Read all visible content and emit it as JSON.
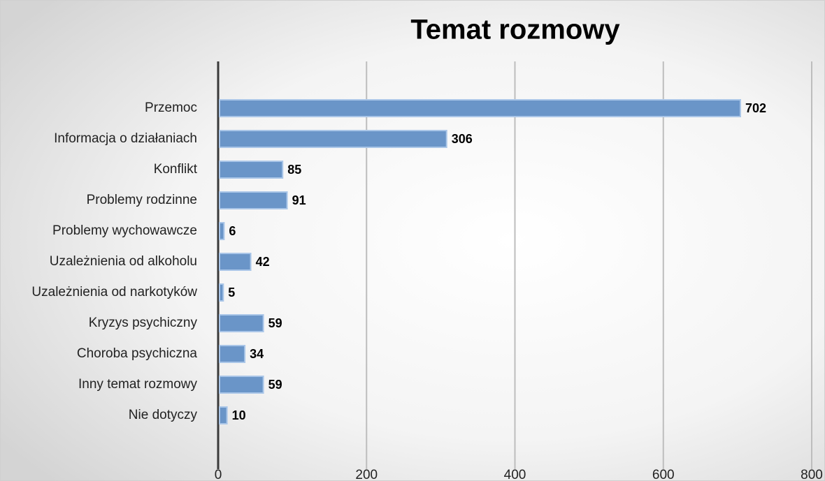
{
  "chart_data": {
    "type": "bar",
    "orientation": "horizontal",
    "title": "Temat rozmowy",
    "categories": [
      "Przemoc",
      "Informacja o działaniach",
      "Konflikt",
      "Problemy rodzinne",
      "Problemy wychowawcze",
      "Uzależnienia od alkoholu",
      "Uzależnienia od narkotyków",
      "Kryzys psychiczny",
      "Choroba psychiczna",
      "Inny temat rozmowy",
      "Nie dotyczy"
    ],
    "values": [
      702,
      306,
      85,
      91,
      6,
      42,
      5,
      59,
      34,
      59,
      10
    ],
    "color": "#6a95c8",
    "xlim": [
      0,
      800
    ],
    "xticks": [
      0,
      200,
      400,
      600,
      800
    ],
    "grid": true
  }
}
